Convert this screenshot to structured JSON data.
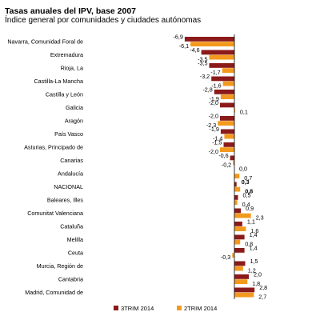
{
  "title": "Tasas anuales del IPV, base 2007",
  "subtitle": "Índice general por comunidades y ciudades autónomas",
  "colors": {
    "series1": "#8b1a1a",
    "series2": "#f39a1e",
    "axis": "#000000"
  },
  "chart_data": {
    "type": "bar",
    "orientation": "horizontal",
    "categories": [
      "Navarra, Comunidad Foral de",
      "Extremadura",
      "Rioja, La",
      "Castilla-La Mancha",
      "Castilla y León",
      "Galicia",
      "Aragón",
      "País Vasco",
      "Asturias, Principado de",
      "Canarias",
      "Andalucía",
      "NACIONAL",
      "Baleares, Illes",
      "Comunitat Valenciana",
      "Cataluña",
      "Melilla",
      "Ceuta",
      "Murcia, Región de",
      "Cantabria",
      "Madrid, Comunidad de"
    ],
    "series": [
      {
        "name": "3TRIM 2014",
        "values": [
          -6.9,
          -4.6,
          -3.5,
          -3.2,
          -2.8,
          -2.0,
          -2.0,
          -1.9,
          -1.5,
          -0.6,
          0.0,
          0.3,
          0.5,
          0.9,
          1.1,
          1.4,
          1.4,
          1.5,
          2.0,
          2.8
        ],
        "labels": [
          "-6,9",
          "-4,6",
          "-3,5",
          "-3,2",
          "-2,8",
          "-2,0",
          "-2,0",
          "-1,9",
          "-1,5",
          "-0,6",
          "0,0",
          "0,3",
          "0,5",
          "0,9",
          "1,1",
          "1,4",
          "1,4",
          "1,5",
          "2,0",
          "2,8"
        ]
      },
      {
        "name": "2TRIM 2014",
        "values": [
          -6.1,
          -3.5,
          -1.7,
          -1.6,
          -1.9,
          0.1,
          -2.3,
          -1.4,
          -2.0,
          -0.2,
          0.7,
          0.8,
          0.4,
          2.3,
          1.6,
          0.8,
          -0.3,
          1.2,
          1.8,
          2.7
        ],
        "labels": [
          "-6,1",
          "-3,5",
          "-1,7",
          "-1,6",
          "-1,9",
          "0,1",
          "-2,3",
          "-1,4",
          "-2,0",
          "-0,2",
          "0,7",
          "0,8",
          "0,4",
          "2,3",
          "1,6",
          "0,8",
          "-0,3",
          "1,2",
          "1,8",
          "2,7"
        ]
      }
    ],
    "bold_category": "NACIONAL",
    "legend_position": "bottom",
    "grid": false
  }
}
